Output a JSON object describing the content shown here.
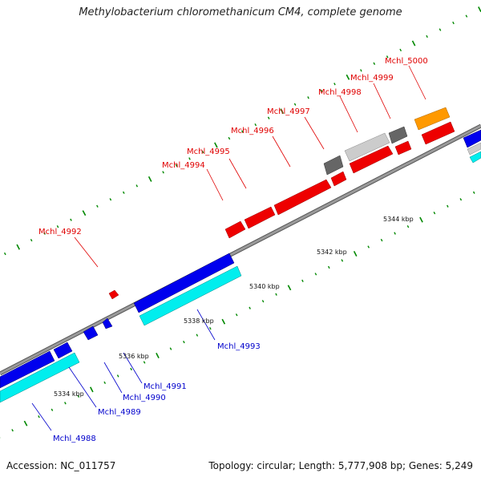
{
  "title": "Methylobacterium chloromethanicum CM4, complete genome",
  "footer": {
    "accession": "Accession: NC_011757",
    "summary": "Topology: circular; Length: 5,777,908 bp; Genes: 5,249"
  },
  "colors": {
    "forward": "#ee0000",
    "reverse": "#0000ee",
    "reverse_rna": "#00eeee",
    "pseudo": "#666666",
    "other": "#cccccc",
    "special": "#ff9900",
    "backbone": "#888888",
    "tick": "#008800"
  },
  "scale_labels": [
    {
      "text": "5334 kbp",
      "pos": 5334
    },
    {
      "text": "5336 kbp",
      "pos": 5336
    },
    {
      "text": "5338 kbp",
      "pos": 5338
    },
    {
      "text": "5340 kbp",
      "pos": 5340
    },
    {
      "text": "5342 kbp",
      "pos": 5342
    },
    {
      "text": "5344 kbp",
      "pos": 5344
    }
  ],
  "forward_labels": [
    {
      "name": "Mchl_4992",
      "gene": 4992
    },
    {
      "name": "Mchl_4994",
      "gene": 4994
    },
    {
      "name": "Mchl_4995",
      "gene": 4995
    },
    {
      "name": "Mchl_4996",
      "gene": 4996
    },
    {
      "name": "Mchl_4997",
      "gene": 4997
    },
    {
      "name": "Mchl_4998",
      "gene": 4998
    },
    {
      "name": "Mchl_4999",
      "gene": 4999
    },
    {
      "name": "Mchl_5000",
      "gene": 5000
    }
  ],
  "reverse_labels": [
    {
      "name": "Mchl_4988",
      "gene": 4988
    },
    {
      "name": "Mchl_4989",
      "gene": 4989
    },
    {
      "name": "Mchl_4990",
      "gene": 4990
    },
    {
      "name": "Mchl_4991",
      "gene": 4991
    },
    {
      "name": "Mchl_4993",
      "gene": 4993
    }
  ]
}
